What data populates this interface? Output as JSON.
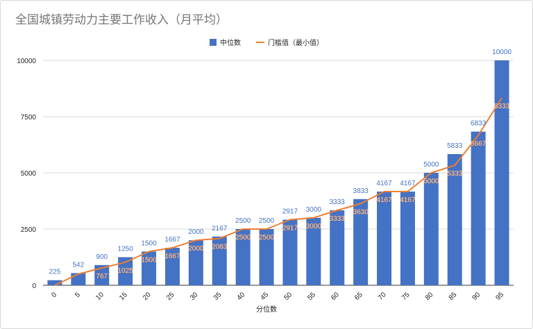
{
  "title": "全国城镇劳动力主要工作收入（月平均）",
  "legend": {
    "median_label": "中位数",
    "threshold_label": "门槛值（最小值）"
  },
  "colors": {
    "bar": "#4472c4",
    "line": "#ed7d31",
    "grid": "#d9d9d9",
    "bar_label": "#4472c4",
    "line_label": "#ffffff"
  },
  "chart_data": {
    "type": "bar",
    "title": "全国城镇劳动力主要工作收入（月平均）",
    "xlabel": "分位数",
    "ylabel": "",
    "categories": [
      "0",
      "5",
      "10",
      "15",
      "20",
      "25",
      "30",
      "35",
      "40",
      "45",
      "50",
      "55",
      "60",
      "65",
      "70",
      "75",
      "80",
      "85",
      "90",
      "95"
    ],
    "ylim": [
      0,
      10000
    ],
    "yticks": [
      0,
      2500,
      5000,
      7500,
      10000
    ],
    "grid": true,
    "legend_position": "top-center",
    "series": [
      {
        "name": "中位数",
        "type": "bar",
        "values": [
          225,
          542,
          900,
          1250,
          1500,
          1667,
          2000,
          2167,
          2500,
          2500,
          2917,
          3000,
          3333,
          3833,
          4167,
          4167,
          5000,
          5833,
          6833,
          10000
        ]
      },
      {
        "name": "门槛值（最小值）",
        "type": "line",
        "values": [
          0,
          500,
          767,
          1025,
          1500,
          1667,
          2000,
          2083,
          2500,
          2500,
          2917,
          3000,
          3333,
          3630,
          4167,
          4167,
          5000,
          5333,
          6667,
          8333
        ]
      }
    ],
    "line_labels_shown": [
      "767",
      "1025",
      "1500",
      "1667",
      "2000",
      "2083",
      "2500",
      "2500",
      "2917",
      "3000",
      "3333",
      "3630",
      "4167",
      "4167",
      "5000",
      "5333",
      "6667",
      "8333"
    ]
  }
}
